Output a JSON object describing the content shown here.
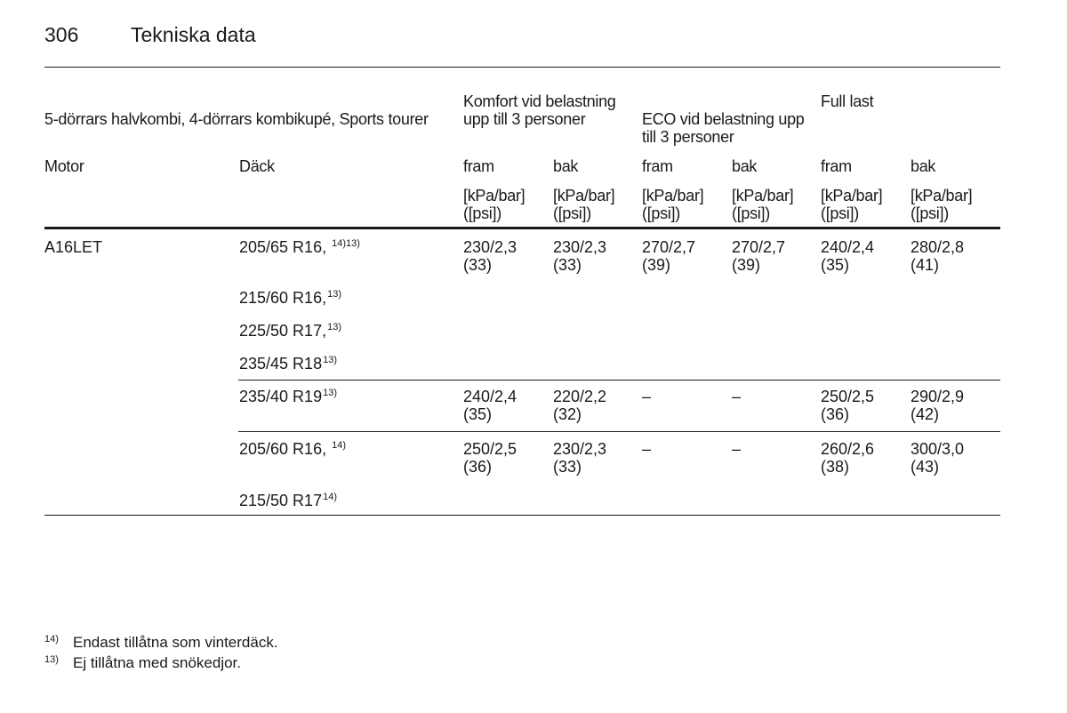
{
  "page": {
    "number": "306",
    "title": "Tekniska data"
  },
  "table": {
    "caption": "5-dörrars halvkombi, 4-dörrars kombikupé, Sports tourer",
    "groups": [
      {
        "label": "Komfort vid belastning upp till 3 personer"
      },
      {
        "label": "ECO vid belastning upp till 3 personer"
      },
      {
        "label": "Full last"
      }
    ],
    "col_motor": "Motor",
    "col_tire": "Däck",
    "axles": {
      "front": "fram",
      "rear": "bak"
    },
    "unit_line1": "[kPa/bar]",
    "unit_line2": "([psi])",
    "motor": "A16LET",
    "tires": [
      {
        "size": "205/65 R16,",
        "note": "14)13)"
      },
      {
        "size": "215/60 R16,",
        "note": "13)"
      },
      {
        "size": "225/50 R17,",
        "note": "13)"
      },
      {
        "size": "235/45 R18",
        "note": "13)"
      },
      {
        "size": "235/40 R19",
        "note": "13)"
      },
      {
        "size": "205/60 R16,",
        "note": "14)"
      },
      {
        "size": "215/50 R17",
        "note": "14)"
      }
    ],
    "blocks": [
      {
        "values": [
          {
            "kpa": "230/2,3",
            "psi": "(33)"
          },
          {
            "kpa": "230/2,3",
            "psi": "(33)"
          },
          {
            "kpa": "270/2,7",
            "psi": "(39)"
          },
          {
            "kpa": "270/2,7",
            "psi": "(39)"
          },
          {
            "kpa": "240/2,4",
            "psi": "(35)"
          },
          {
            "kpa": "280/2,8",
            "psi": "(41)"
          }
        ]
      },
      {
        "values": [
          {
            "kpa": "240/2,4",
            "psi": "(35)"
          },
          {
            "kpa": "220/2,2",
            "psi": "(32)"
          },
          {
            "kpa": "–",
            "psi": ""
          },
          {
            "kpa": "–",
            "psi": ""
          },
          {
            "kpa": "250/2,5",
            "psi": "(36)"
          },
          {
            "kpa": "290/2,9",
            "psi": "(42)"
          }
        ]
      },
      {
        "values": [
          {
            "kpa": "250/2,5",
            "psi": "(36)"
          },
          {
            "kpa": "230/2,3",
            "psi": "(33)"
          },
          {
            "kpa": "–",
            "psi": ""
          },
          {
            "kpa": "–",
            "psi": ""
          },
          {
            "kpa": "260/2,6",
            "psi": "(38)"
          },
          {
            "kpa": "300/3,0",
            "psi": "(43)"
          }
        ]
      }
    ]
  },
  "footnotes": [
    {
      "mark": "14)",
      "text": "Endast tillåtna som vinterdäck."
    },
    {
      "mark": "13)",
      "text": "Ej tillåtna med snökedjor."
    }
  ]
}
